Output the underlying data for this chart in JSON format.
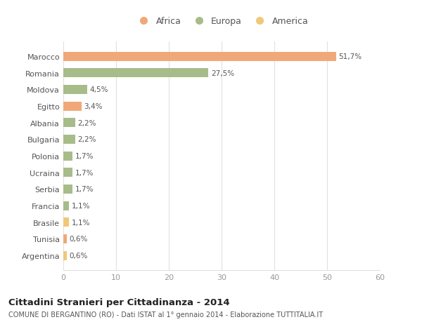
{
  "categories": [
    "Argentina",
    "Tunisia",
    "Brasile",
    "Francia",
    "Serbia",
    "Ucraina",
    "Polonia",
    "Bulgaria",
    "Albania",
    "Egitto",
    "Moldova",
    "Romania",
    "Marocco"
  ],
  "values": [
    0.6,
    0.6,
    1.1,
    1.1,
    1.7,
    1.7,
    1.7,
    2.2,
    2.2,
    3.4,
    4.5,
    27.5,
    51.7
  ],
  "labels": [
    "0,6%",
    "0,6%",
    "1,1%",
    "1,1%",
    "1,7%",
    "1,7%",
    "1,7%",
    "2,2%",
    "2,2%",
    "3,4%",
    "4,5%",
    "27,5%",
    "51,7%"
  ],
  "colors": [
    "#f0c878",
    "#f0a878",
    "#f0c878",
    "#a8bc8a",
    "#a8bc8a",
    "#a8bc8a",
    "#a8bc8a",
    "#a8bc8a",
    "#a8bc8a",
    "#f0a878",
    "#a8bc8a",
    "#a8bc8a",
    "#f0a878"
  ],
  "legend": [
    {
      "label": "Africa",
      "color": "#f0a878"
    },
    {
      "label": "Europa",
      "color": "#a8bc8a"
    },
    {
      "label": "America",
      "color": "#f0c878"
    }
  ],
  "title": "Cittadini Stranieri per Cittadinanza - 2014",
  "subtitle": "COMUNE DI BERGANTINO (RO) - Dati ISTAT al 1° gennaio 2014 - Elaborazione TUTTITALIA.IT",
  "xlim": [
    0,
    60
  ],
  "xticks": [
    0,
    10,
    20,
    30,
    40,
    50,
    60
  ],
  "background_color": "#ffffff",
  "grid_color": "#e0e0e0",
  "bar_height": 0.55
}
